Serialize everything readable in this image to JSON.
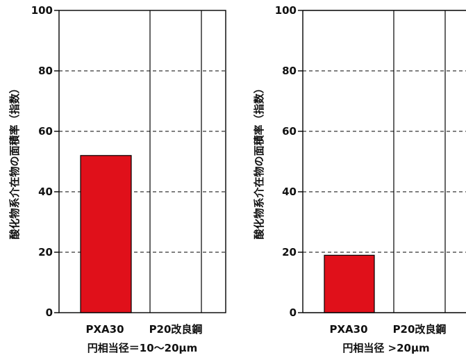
{
  "chart_data": [
    {
      "type": "bar",
      "categories": [
        "PXA30",
        "P20改良鋼"
      ],
      "values": [
        52,
        0
      ],
      "ylabel": "酸化物系介在物の面積率（指数）",
      "xlabel": "円相当径＝10〜20μm",
      "ylim": [
        0,
        100
      ],
      "yticks": [
        0,
        20,
        40,
        60,
        80,
        100
      ],
      "grid": "dashed horizontal",
      "bar_color": "#e0101a"
    },
    {
      "type": "bar",
      "categories": [
        "PXA30",
        "P20改良鋼"
      ],
      "values": [
        19,
        0
      ],
      "ylabel": "酸化物系介在物の面積率（指数）",
      "xlabel": "円相当径 >20μm",
      "ylim": [
        0,
        100
      ],
      "yticks": [
        0,
        20,
        40,
        60,
        80,
        100
      ],
      "grid": "dashed horizontal",
      "bar_color": "#e0101a"
    }
  ]
}
